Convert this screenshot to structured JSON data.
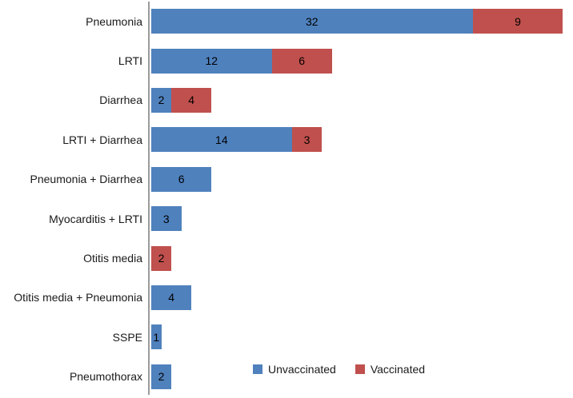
{
  "chart_data": {
    "type": "bar",
    "orientation": "horizontal",
    "stacked": true,
    "title": "",
    "xlabel": "",
    "ylabel": "",
    "categories": [
      "Pneumonia",
      "LRTI",
      "Diarrhea",
      "LRTI + Diarrhea",
      "Pneumonia + Diarrhea",
      "Myocarditis + LRTI",
      "Otitis media",
      "Otitis media + Pneumonia",
      "SSPE",
      "Pneumothorax"
    ],
    "series": [
      {
        "name": "Unvaccinated",
        "color": "#4F81BD",
        "values": [
          32,
          12,
          2,
          14,
          6,
          3,
          0,
          4,
          1,
          2
        ]
      },
      {
        "name": "Vaccinated",
        "color": "#C0504D",
        "values": [
          9,
          6,
          4,
          3,
          0,
          0,
          2,
          0,
          0,
          0
        ]
      }
    ],
    "xlim": [
      0,
      42
    ],
    "data_labels": true,
    "grid": false,
    "legend_position": "bottom",
    "axis_color": "#9B9B9B",
    "background": "#FFFFFF"
  }
}
